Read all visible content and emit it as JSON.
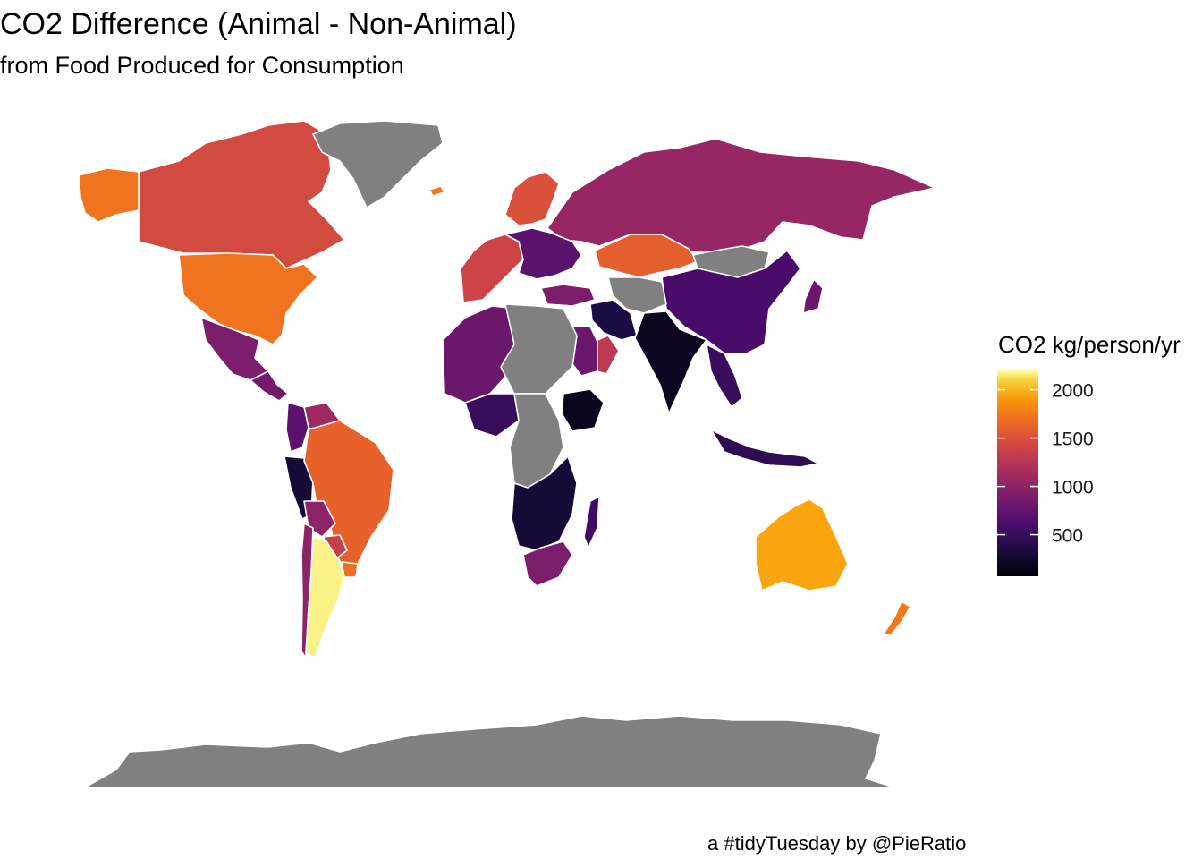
{
  "title": "CO2 Difference (Animal - Non-Animal)",
  "subtitle": "from Food Produced for Consumption",
  "caption": "a #tidyTuesday by @PieRatio",
  "legend": {
    "title": "CO2 kg/person/yr",
    "ticks": [
      2000,
      1500,
      1000,
      500
    ],
    "range": [
      70,
      2200
    ],
    "palette": "inferno",
    "missing_color": "#808080"
  },
  "chart_data": {
    "type": "choropleth",
    "value_label": "CO2 kg/person/yr",
    "regions": [
      {
        "name": "Canada",
        "value": 1450
      },
      {
        "name": "USA",
        "value": 1720
      },
      {
        "name": "Alaska",
        "value": 1720
      },
      {
        "name": "Greenland",
        "value": null
      },
      {
        "name": "Iceland",
        "value": 1750
      },
      {
        "name": "Mexico",
        "value": 900
      },
      {
        "name": "Central America",
        "value": 850
      },
      {
        "name": "Venezuela",
        "value": 1100
      },
      {
        "name": "Colombia",
        "value": 700
      },
      {
        "name": "Peru",
        "value": 300
      },
      {
        "name": "Brazil",
        "value": 1620
      },
      {
        "name": "Bolivia",
        "value": 1000
      },
      {
        "name": "Chile",
        "value": 1000
      },
      {
        "name": "Paraguay",
        "value": 1350
      },
      {
        "name": "Uruguay",
        "value": 1700
      },
      {
        "name": "Argentina",
        "value": 2170
      },
      {
        "name": "Russia",
        "value": 1050
      },
      {
        "name": "Scandinavia",
        "value": 1500
      },
      {
        "name": "Western Europe",
        "value": 1400
      },
      {
        "name": "Eastern Europe",
        "value": 700
      },
      {
        "name": "Kazakhstan",
        "value": 1600
      },
      {
        "name": "Mongolia",
        "value": null
      },
      {
        "name": "China",
        "value": 600
      },
      {
        "name": "Central Asia",
        "value": null
      },
      {
        "name": "Turkey",
        "value": 900
      },
      {
        "name": "Iran",
        "value": 350
      },
      {
        "name": "Saudi Arabia",
        "value": 800
      },
      {
        "name": "Oman",
        "value": 1300
      },
      {
        "name": "India",
        "value": 200
      },
      {
        "name": "Southeast Asia",
        "value": 500
      },
      {
        "name": "Indonesia",
        "value": 450
      },
      {
        "name": "Japan",
        "value": 800
      },
      {
        "name": "North Africa",
        "value": 800
      },
      {
        "name": "Sahara",
        "value": null
      },
      {
        "name": "Nigeria",
        "value": 500
      },
      {
        "name": "Central Africa",
        "value": null
      },
      {
        "name": "Ethiopia",
        "value": 180
      },
      {
        "name": "Southern Africa",
        "value": 300
      },
      {
        "name": "South Africa",
        "value": 900
      },
      {
        "name": "Madagascar",
        "value": 550
      },
      {
        "name": "Australia",
        "value": 1950
      },
      {
        "name": "New Zealand",
        "value": 1750
      },
      {
        "name": "Antarctica",
        "value": null
      }
    ]
  }
}
